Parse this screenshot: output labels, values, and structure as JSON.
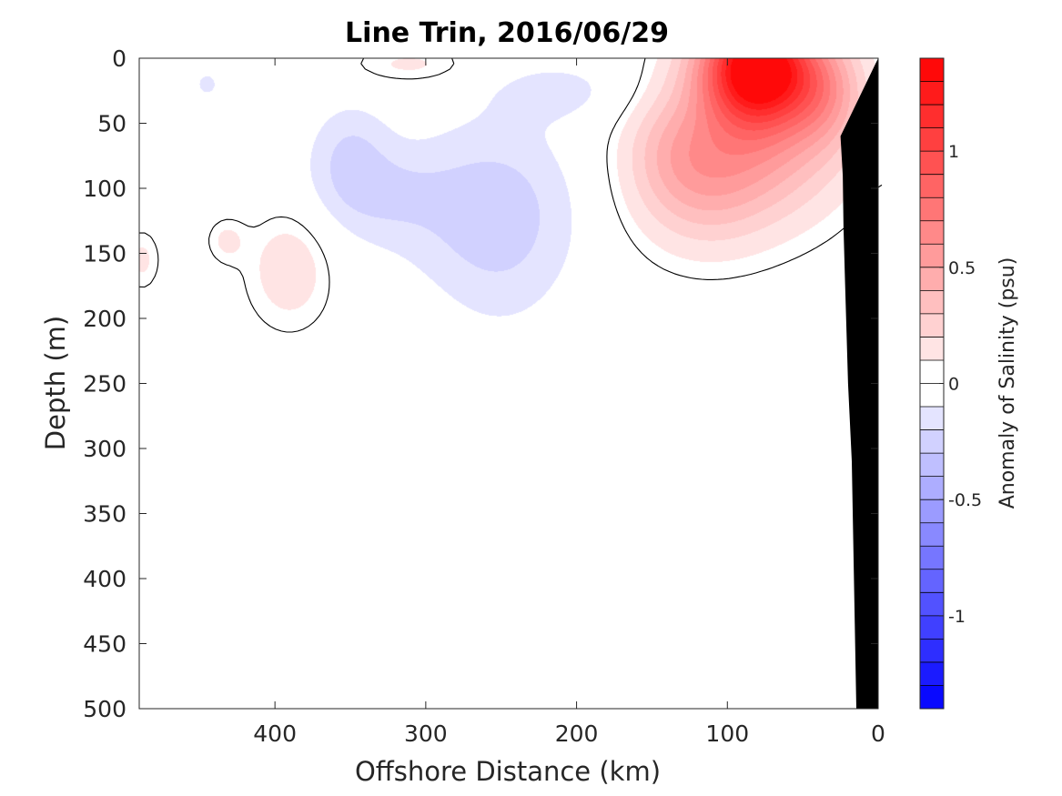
{
  "chart_data": {
    "type": "heatmap",
    "title": "Line Trin, 2016/06/29",
    "xlabel": "Offshore Distance (km)",
    "ylabel": "Depth (m)",
    "colorbar_label": "Anomaly of Salinity (psu)",
    "xlim": [
      490,
      0
    ],
    "ylim": [
      500,
      0
    ],
    "x_ticks": [
      400,
      300,
      200,
      100,
      0
    ],
    "y_ticks": [
      0,
      50,
      100,
      150,
      200,
      250,
      300,
      350,
      400,
      450,
      500
    ],
    "clim": [
      -1.4,
      1.4
    ],
    "colorbar_ticks": [
      1,
      0.5,
      0,
      -0.5,
      -1
    ],
    "colorbar_ticklabels": [
      "1",
      "0.5",
      "0",
      "-0.5",
      "-1"
    ],
    "colorbar_levels": 28,
    "colormap": {
      "low": "#0000ff",
      "mid": "#ffffff",
      "high": "#ff0000"
    },
    "zero_contour_color": "#000000",
    "bathymetry_color": "#000000",
    "anomaly_features": [
      {
        "x": 80,
        "y": 5,
        "sx": 26,
        "sy": 30,
        "value": 1.35
      },
      {
        "x": 72,
        "y": 55,
        "sx": 38,
        "sy": 45,
        "value": 0.45
      },
      {
        "x": 118,
        "y": 90,
        "sx": 32,
        "sy": 38,
        "value": 0.38
      },
      {
        "x": 140,
        "y": 65,
        "sx": 20,
        "sy": 30,
        "value": 0.12
      },
      {
        "x": 35,
        "y": 25,
        "sx": 18,
        "sy": 28,
        "value": 0.3
      },
      {
        "x": 310,
        "y": 5,
        "sx": 28,
        "sy": 10,
        "value": 0.12
      },
      {
        "x": 390,
        "y": 160,
        "sx": 20,
        "sy": 32,
        "value": 0.18
      },
      {
        "x": 432,
        "y": 140,
        "sx": 9,
        "sy": 12,
        "value": 0.12
      },
      {
        "x": 488,
        "y": 155,
        "sx": 8,
        "sy": 16,
        "value": 0.12
      },
      {
        "x": 250,
        "y": 130,
        "sx": 34,
        "sy": 55,
        "value": -0.2
      },
      {
        "x": 300,
        "y": 110,
        "sx": 60,
        "sy": 40,
        "value": -0.12
      },
      {
        "x": 350,
        "y": 75,
        "sx": 18,
        "sy": 28,
        "value": -0.18
      },
      {
        "x": 210,
        "y": 25,
        "sx": 35,
        "sy": 18,
        "value": -0.12
      },
      {
        "x": 445,
        "y": 20,
        "sx": 8,
        "sy": 10,
        "value": -0.12
      },
      {
        "x": 325,
        "y": 105,
        "sx": 25,
        "sy": 20,
        "value": -0.1
      }
    ]
  }
}
